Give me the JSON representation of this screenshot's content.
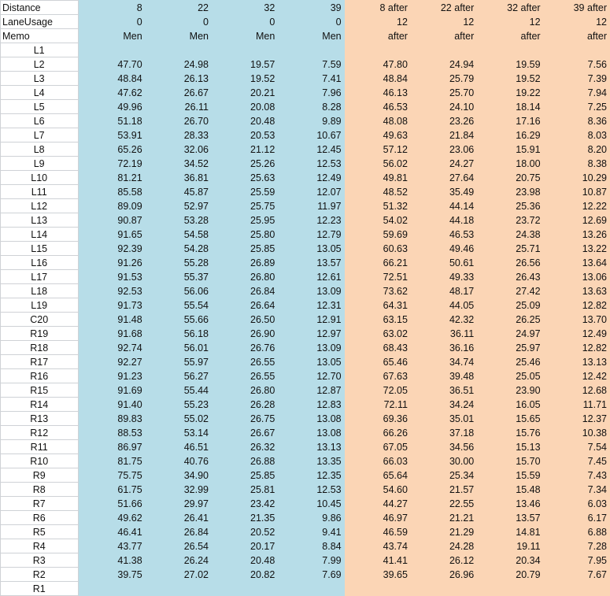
{
  "header_rows": [
    {
      "label": "Distance",
      "values": [
        "8",
        "22",
        "32",
        "39",
        "8 after",
        "22 after",
        "32 after",
        "39 after"
      ]
    },
    {
      "label": "LaneUsage",
      "values": [
        "0",
        "0",
        "0",
        "0",
        "12",
        "12",
        "12",
        "12"
      ]
    },
    {
      "label": "Memo",
      "values": [
        "Men",
        "Men",
        "Men",
        "Men",
        "after",
        "after",
        "after",
        "after"
      ]
    }
  ],
  "rows": [
    {
      "label": "L1",
      "values": [
        "",
        "",
        "",
        "",
        "",
        "",
        "",
        ""
      ]
    },
    {
      "label": "L2",
      "values": [
        "47.70",
        "24.98",
        "19.57",
        "7.59",
        "47.80",
        "24.94",
        "19.59",
        "7.56"
      ]
    },
    {
      "label": "L3",
      "values": [
        "48.84",
        "26.13",
        "19.52",
        "7.41",
        "48.84",
        "25.79",
        "19.52",
        "7.39"
      ]
    },
    {
      "label": "L4",
      "values": [
        "47.62",
        "26.67",
        "20.21",
        "7.96",
        "46.13",
        "25.70",
        "19.22",
        "7.94"
      ]
    },
    {
      "label": "L5",
      "values": [
        "49.96",
        "26.11",
        "20.08",
        "8.28",
        "46.53",
        "24.10",
        "18.14",
        "7.25"
      ]
    },
    {
      "label": "L6",
      "values": [
        "51.18",
        "26.70",
        "20.48",
        "9.89",
        "48.08",
        "23.26",
        "17.16",
        "8.36"
      ]
    },
    {
      "label": "L7",
      "values": [
        "53.91",
        "28.33",
        "20.53",
        "10.67",
        "49.63",
        "21.84",
        "16.29",
        "8.03"
      ]
    },
    {
      "label": "L8",
      "values": [
        "65.26",
        "32.06",
        "21.12",
        "12.45",
        "57.12",
        "23.06",
        "15.91",
        "8.20"
      ]
    },
    {
      "label": "L9",
      "values": [
        "72.19",
        "34.52",
        "25.26",
        "12.53",
        "56.02",
        "24.27",
        "18.00",
        "8.38"
      ]
    },
    {
      "label": "L10",
      "values": [
        "81.21",
        "36.81",
        "25.63",
        "12.49",
        "49.81",
        "27.64",
        "20.75",
        "10.29"
      ]
    },
    {
      "label": "L11",
      "values": [
        "85.58",
        "45.87",
        "25.59",
        "12.07",
        "48.52",
        "35.49",
        "23.98",
        "10.87"
      ]
    },
    {
      "label": "L12",
      "values": [
        "89.09",
        "52.97",
        "25.75",
        "11.97",
        "51.32",
        "44.14",
        "25.36",
        "12.22"
      ]
    },
    {
      "label": "L13",
      "values": [
        "90.87",
        "53.28",
        "25.95",
        "12.23",
        "54.02",
        "44.18",
        "23.72",
        "12.69"
      ]
    },
    {
      "label": "L14",
      "values": [
        "91.65",
        "54.58",
        "25.80",
        "12.79",
        "59.69",
        "46.53",
        "24.38",
        "13.26"
      ]
    },
    {
      "label": "L15",
      "values": [
        "92.39",
        "54.28",
        "25.85",
        "13.05",
        "60.63",
        "49.46",
        "25.71",
        "13.22"
      ]
    },
    {
      "label": "L16",
      "values": [
        "91.26",
        "55.28",
        "26.89",
        "13.57",
        "66.21",
        "50.61",
        "26.56",
        "13.64"
      ]
    },
    {
      "label": "L17",
      "values": [
        "91.53",
        "55.37",
        "26.80",
        "12.61",
        "72.51",
        "49.33",
        "26.43",
        "13.06"
      ]
    },
    {
      "label": "L18",
      "values": [
        "92.53",
        "56.06",
        "26.84",
        "13.09",
        "73.62",
        "48.17",
        "27.42",
        "13.63"
      ]
    },
    {
      "label": "L19",
      "values": [
        "91.73",
        "55.54",
        "26.64",
        "12.31",
        "64.31",
        "44.05",
        "25.09",
        "12.82"
      ]
    },
    {
      "label": "C20",
      "values": [
        "91.48",
        "55.66",
        "26.50",
        "12.91",
        "63.15",
        "42.32",
        "26.25",
        "13.70"
      ]
    },
    {
      "label": "R19",
      "values": [
        "91.68",
        "56.18",
        "26.90",
        "12.97",
        "63.02",
        "36.11",
        "24.97",
        "12.49"
      ]
    },
    {
      "label": "R18",
      "values": [
        "92.74",
        "56.01",
        "26.76",
        "13.09",
        "68.43",
        "36.16",
        "25.97",
        "12.82"
      ]
    },
    {
      "label": "R17",
      "values": [
        "92.27",
        "55.97",
        "26.55",
        "13.05",
        "65.46",
        "34.74",
        "25.46",
        "13.13"
      ]
    },
    {
      "label": "R16",
      "values": [
        "91.23",
        "56.27",
        "26.55",
        "12.70",
        "67.63",
        "39.48",
        "25.05",
        "12.42"
      ]
    },
    {
      "label": "R15",
      "values": [
        "91.69",
        "55.44",
        "26.80",
        "12.87",
        "72.05",
        "36.51",
        "23.90",
        "12.68"
      ]
    },
    {
      "label": "R14",
      "values": [
        "91.40",
        "55.23",
        "26.28",
        "12.83",
        "72.11",
        "34.24",
        "16.05",
        "11.71"
      ]
    },
    {
      "label": "R13",
      "values": [
        "89.83",
        "55.02",
        "26.75",
        "13.08",
        "69.36",
        "35.01",
        "15.65",
        "12.37"
      ]
    },
    {
      "label": "R12",
      "values": [
        "88.53",
        "53.14",
        "26.67",
        "13.08",
        "66.26",
        "37.18",
        "15.76",
        "10.38"
      ]
    },
    {
      "label": "R11",
      "values": [
        "86.97",
        "46.51",
        "26.32",
        "13.13",
        "67.05",
        "34.56",
        "15.13",
        "7.54"
      ]
    },
    {
      "label": "R10",
      "values": [
        "81.75",
        "40.76",
        "26.88",
        "13.35",
        "66.03",
        "30.00",
        "15.70",
        "7.45"
      ]
    },
    {
      "label": "R9",
      "values": [
        "75.75",
        "34.90",
        "25.85",
        "12.35",
        "65.64",
        "25.34",
        "15.59",
        "7.43"
      ]
    },
    {
      "label": "R8",
      "values": [
        "61.75",
        "32.99",
        "25.81",
        "12.53",
        "54.60",
        "21.57",
        "15.48",
        "7.34"
      ]
    },
    {
      "label": "R7",
      "values": [
        "51.66",
        "29.97",
        "23.42",
        "10.45",
        "44.27",
        "22.55",
        "13.46",
        "6.03"
      ]
    },
    {
      "label": "R6",
      "values": [
        "49.62",
        "26.41",
        "21.35",
        "9.86",
        "46.97",
        "21.21",
        "13.57",
        "6.17"
      ]
    },
    {
      "label": "R5",
      "values": [
        "46.41",
        "26.84",
        "20.52",
        "9.41",
        "46.59",
        "21.29",
        "14.81",
        "6.88"
      ]
    },
    {
      "label": "R4",
      "values": [
        "43.77",
        "26.54",
        "20.17",
        "8.84",
        "43.74",
        "24.28",
        "19.11",
        "7.28"
      ]
    },
    {
      "label": "R3",
      "values": [
        "41.38",
        "26.24",
        "20.48",
        "7.99",
        "41.41",
        "26.12",
        "20.34",
        "7.95"
      ]
    },
    {
      "label": "R2",
      "values": [
        "39.75",
        "27.02",
        "20.82",
        "7.69",
        "39.65",
        "26.96",
        "20.79",
        "7.67"
      ]
    },
    {
      "label": "R1",
      "values": [
        "",
        "",
        "",
        "",
        "",
        "",
        "",
        ""
      ]
    }
  ],
  "colors": {
    "left_group_fill": "#b7dde8",
    "right_group_fill": "#fbd5b5"
  }
}
